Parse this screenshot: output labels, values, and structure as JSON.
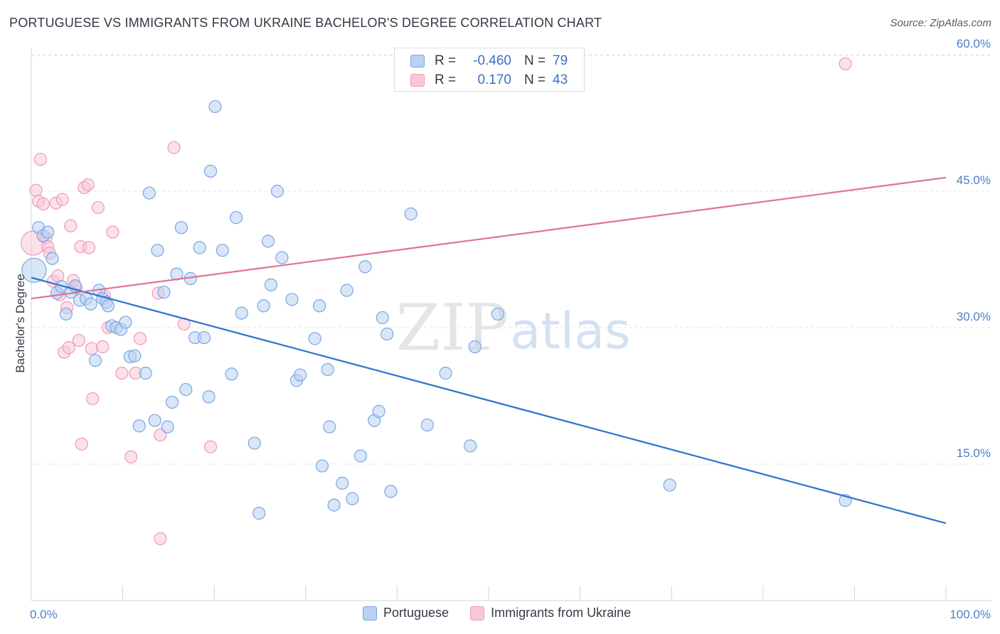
{
  "title": "PORTUGUESE VS IMMIGRANTS FROM UKRAINE BACHELOR'S DEGREE CORRELATION CHART",
  "source": "Source: ZipAtlas.com",
  "watermark": {
    "zip": "ZIP",
    "atlas": "atlas"
  },
  "legend_top": {
    "rows": [
      {
        "r_label": "R =",
        "r_value": "-0.460",
        "n_label": "N =",
        "n_value": "79"
      },
      {
        "r_label": "R =",
        "r_value": "0.170",
        "n_label": "N =",
        "n_value": "43"
      }
    ]
  },
  "legend_bottom": [
    {
      "label": "Portuguese"
    },
    {
      "label": "Immigrants from Ukraine"
    }
  ],
  "colors": {
    "portuguese_fill": "#b9d2f3",
    "portuguese_stroke": "#7aa6e0",
    "portuguese_line": "#2f73d0",
    "ukraine_fill": "#f8c8d8",
    "ukraine_stroke": "#ee9ab6",
    "ukraine_line": "#e0709a",
    "grid": "#dfe3e8",
    "tick_text": "#4a7fc8"
  },
  "chart_data": {
    "type": "scatter",
    "xlabel": "",
    "ylabel": "Bachelor's Degree",
    "x_tick_labels": [
      "0.0%",
      "100.0%"
    ],
    "y_tick_labels": [
      "15.0%",
      "30.0%",
      "45.0%",
      "60.0%"
    ],
    "y_ticks": [
      15,
      30,
      45,
      60
    ],
    "xlim": [
      0,
      100
    ],
    "ylim": [
      0,
      61.5
    ],
    "grid": true,
    "legend_position": "top-center",
    "series": [
      {
        "name": "Portuguese",
        "r": -0.46,
        "n": 79,
        "trend": {
          "x": [
            0,
            100
          ],
          "y": [
            35.5,
            8.5
          ]
        },
        "points": [
          {
            "x": 0.3,
            "y": 36.3,
            "big": true
          },
          {
            "x": 0.8,
            "y": 41.0
          },
          {
            "x": 1.3,
            "y": 40.1
          },
          {
            "x": 1.8,
            "y": 40.5
          },
          {
            "x": 2.3,
            "y": 37.6
          },
          {
            "x": 2.8,
            "y": 33.8
          },
          {
            "x": 3.3,
            "y": 34.5
          },
          {
            "x": 3.8,
            "y": 31.5
          },
          {
            "x": 4.3,
            "y": 33.9
          },
          {
            "x": 4.8,
            "y": 34.6
          },
          {
            "x": 5.3,
            "y": 33.0
          },
          {
            "x": 6.0,
            "y": 33.2
          },
          {
            "x": 6.5,
            "y": 32.6
          },
          {
            "x": 7.0,
            "y": 26.4
          },
          {
            "x": 7.4,
            "y": 34.1
          },
          {
            "x": 7.8,
            "y": 33.2
          },
          {
            "x": 8.2,
            "y": 32.8
          },
          {
            "x": 8.4,
            "y": 32.4
          },
          {
            "x": 8.8,
            "y": 30.2
          },
          {
            "x": 9.3,
            "y": 30.0
          },
          {
            "x": 9.8,
            "y": 29.8
          },
          {
            "x": 10.3,
            "y": 30.6
          },
          {
            "x": 10.8,
            "y": 26.8
          },
          {
            "x": 11.3,
            "y": 26.9
          },
          {
            "x": 11.8,
            "y": 19.2
          },
          {
            "x": 12.5,
            "y": 25.0
          },
          {
            "x": 12.9,
            "y": 44.8
          },
          {
            "x": 13.5,
            "y": 19.8
          },
          {
            "x": 13.8,
            "y": 38.5
          },
          {
            "x": 14.5,
            "y": 33.9
          },
          {
            "x": 14.9,
            "y": 19.1
          },
          {
            "x": 15.4,
            "y": 21.8
          },
          {
            "x": 15.9,
            "y": 35.9
          },
          {
            "x": 16.4,
            "y": 41.0
          },
          {
            "x": 16.9,
            "y": 23.2
          },
          {
            "x": 17.4,
            "y": 35.4
          },
          {
            "x": 17.9,
            "y": 28.9
          },
          {
            "x": 18.4,
            "y": 38.8
          },
          {
            "x": 18.9,
            "y": 28.9
          },
          {
            "x": 19.4,
            "y": 22.4
          },
          {
            "x": 19.6,
            "y": 47.2
          },
          {
            "x": 20.1,
            "y": 54.3
          },
          {
            "x": 20.9,
            "y": 38.5
          },
          {
            "x": 21.9,
            "y": 24.9
          },
          {
            "x": 22.4,
            "y": 42.1
          },
          {
            "x": 23.0,
            "y": 31.6
          },
          {
            "x": 24.4,
            "y": 17.3
          },
          {
            "x": 24.9,
            "y": 9.6
          },
          {
            "x": 25.4,
            "y": 32.4
          },
          {
            "x": 25.9,
            "y": 39.5
          },
          {
            "x": 26.2,
            "y": 34.7
          },
          {
            "x": 26.9,
            "y": 45.0
          },
          {
            "x": 27.4,
            "y": 37.7
          },
          {
            "x": 28.5,
            "y": 33.1
          },
          {
            "x": 29.0,
            "y": 24.2
          },
          {
            "x": 29.4,
            "y": 24.8
          },
          {
            "x": 31.0,
            "y": 28.8
          },
          {
            "x": 31.5,
            "y": 32.4
          },
          {
            "x": 31.8,
            "y": 14.8
          },
          {
            "x": 32.4,
            "y": 25.4
          },
          {
            "x": 32.6,
            "y": 19.1
          },
          {
            "x": 33.1,
            "y": 10.5
          },
          {
            "x": 34.0,
            "y": 12.9
          },
          {
            "x": 34.5,
            "y": 34.1
          },
          {
            "x": 35.1,
            "y": 11.2
          },
          {
            "x": 36.0,
            "y": 15.9
          },
          {
            "x": 36.5,
            "y": 36.7
          },
          {
            "x": 37.5,
            "y": 19.8
          },
          {
            "x": 38.0,
            "y": 20.8
          },
          {
            "x": 38.4,
            "y": 31.1
          },
          {
            "x": 38.9,
            "y": 29.3
          },
          {
            "x": 39.3,
            "y": 12.0
          },
          {
            "x": 41.5,
            "y": 42.5
          },
          {
            "x": 43.3,
            "y": 19.3
          },
          {
            "x": 45.3,
            "y": 25.0
          },
          {
            "x": 48.0,
            "y": 17.0
          },
          {
            "x": 48.5,
            "y": 27.9
          },
          {
            "x": 51.0,
            "y": 31.5
          },
          {
            "x": 69.8,
            "y": 12.7
          },
          {
            "x": 89.0,
            "y": 11.0
          }
        ]
      },
      {
        "name": "Immigrants from Ukraine",
        "r": 0.17,
        "n": 43,
        "trend": {
          "x": [
            0,
            100
          ],
          "y": [
            33.2,
            46.5
          ]
        },
        "points": [
          {
            "x": 0.2,
            "y": 39.3,
            "big": true
          },
          {
            "x": 0.5,
            "y": 45.1
          },
          {
            "x": 0.8,
            "y": 43.9
          },
          {
            "x": 1.0,
            "y": 48.5
          },
          {
            "x": 1.3,
            "y": 43.6
          },
          {
            "x": 1.6,
            "y": 39.9
          },
          {
            "x": 1.8,
            "y": 38.9
          },
          {
            "x": 2.0,
            "y": 38.2
          },
          {
            "x": 2.4,
            "y": 35.1
          },
          {
            "x": 2.7,
            "y": 43.7
          },
          {
            "x": 2.9,
            "y": 35.7
          },
          {
            "x": 3.1,
            "y": 33.6
          },
          {
            "x": 3.4,
            "y": 44.1
          },
          {
            "x": 3.6,
            "y": 27.3
          },
          {
            "x": 3.9,
            "y": 32.2
          },
          {
            "x": 4.1,
            "y": 27.8
          },
          {
            "x": 4.3,
            "y": 41.2
          },
          {
            "x": 4.6,
            "y": 35.2
          },
          {
            "x": 4.9,
            "y": 34.4
          },
          {
            "x": 5.2,
            "y": 28.6
          },
          {
            "x": 5.4,
            "y": 38.9
          },
          {
            "x": 5.5,
            "y": 17.2
          },
          {
            "x": 5.8,
            "y": 45.4
          },
          {
            "x": 6.2,
            "y": 45.7
          },
          {
            "x": 6.3,
            "y": 38.8
          },
          {
            "x": 6.6,
            "y": 27.7
          },
          {
            "x": 6.7,
            "y": 22.2
          },
          {
            "x": 7.3,
            "y": 43.2
          },
          {
            "x": 7.8,
            "y": 27.9
          },
          {
            "x": 8.0,
            "y": 33.5
          },
          {
            "x": 8.4,
            "y": 30.0
          },
          {
            "x": 8.9,
            "y": 40.5
          },
          {
            "x": 9.9,
            "y": 25.0
          },
          {
            "x": 10.9,
            "y": 15.8
          },
          {
            "x": 11.4,
            "y": 25.0
          },
          {
            "x": 11.9,
            "y": 28.8
          },
          {
            "x": 13.9,
            "y": 33.8
          },
          {
            "x": 14.1,
            "y": 18.2
          },
          {
            "x": 14.1,
            "y": 6.8
          },
          {
            "x": 15.6,
            "y": 49.8
          },
          {
            "x": 16.7,
            "y": 30.4
          },
          {
            "x": 19.6,
            "y": 16.9
          },
          {
            "x": 89.0,
            "y": 59.0
          }
        ]
      }
    ]
  }
}
